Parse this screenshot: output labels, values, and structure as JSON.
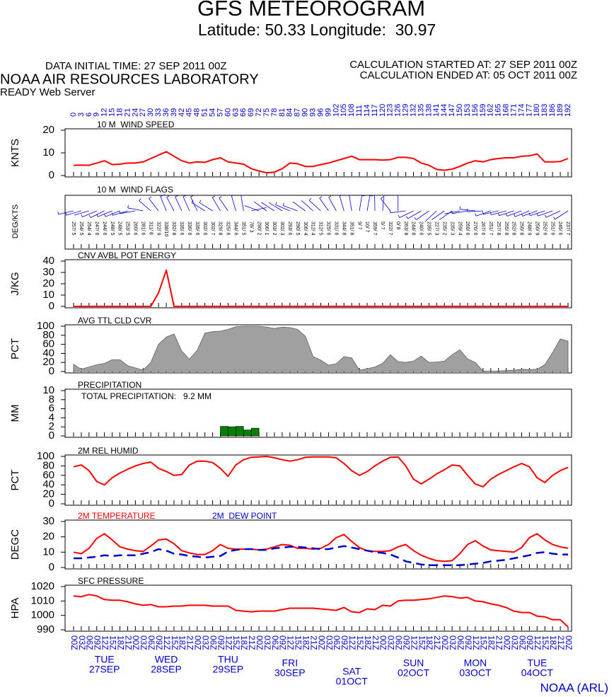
{
  "header": {
    "title": "GFS METEOROGRAM",
    "subtitle": "Latitude: 50.33 Longitude:  30.97",
    "initial_time": "DATA INITIAL TIME: 27 SEP 2011 00Z",
    "lab": "NOAA AIR RESOURCES LABORATORY",
    "server": "READY Web Server",
    "calc_started": "CALCULATION STARTED AT: 27 SEP 2011 00Z",
    "calc_ended": "CALCULATION ENDED AT: 05 OCT 2011 00Z",
    "footer": "NOAA (ARL)"
  },
  "time_axis": {
    "hours": [
      0,
      3,
      6,
      9,
      12,
      15,
      18,
      21,
      24,
      27,
      30,
      33,
      36,
      39,
      42,
      45,
      48,
      51,
      54,
      57,
      60,
      63,
      66,
      69,
      72,
      75,
      78,
      81,
      84,
      87,
      90,
      93,
      96,
      99,
      102,
      105,
      108,
      111,
      114,
      117,
      120,
      123,
      126,
      129,
      132,
      135,
      138,
      141,
      144,
      147,
      150,
      153,
      156,
      159,
      162,
      165,
      168,
      171,
      174,
      177,
      180,
      183,
      186,
      189,
      192
    ],
    "labels": [
      "00Z",
      "03Z",
      "06Z",
      "09Z",
      "12Z",
      "15Z",
      "18Z",
      "21Z",
      "00Z",
      "03Z",
      "06Z",
      "09Z",
      "12Z",
      "15Z",
      "18Z",
      "21Z",
      "00Z",
      "03Z",
      "06Z",
      "09Z",
      "12Z",
      "15Z",
      "18Z",
      "21Z",
      "00Z",
      "03Z",
      "06Z",
      "09Z",
      "12Z",
      "15Z",
      "18Z",
      "21Z",
      "00Z",
      "03Z",
      "06Z",
      "09Z",
      "12Z",
      "15Z",
      "18Z",
      "21Z",
      "00Z",
      "03Z",
      "06Z",
      "09Z",
      "12Z",
      "15Z",
      "18Z",
      "21Z",
      "00Z",
      "03Z",
      "06Z",
      "09Z",
      "12Z",
      "15Z",
      "18Z",
      "21Z",
      "00Z",
      "03Z",
      "06Z",
      "09Z",
      "12Z",
      "15Z",
      "18Z",
      "21Z",
      "00Z"
    ],
    "days": [
      {
        "weekday": "TUE",
        "date": "27SEP"
      },
      {
        "weekday": "WED",
        "date": "28SEP"
      },
      {
        "weekday": "THU",
        "date": "29SEP"
      },
      {
        "weekday": "FRI",
        "date": "30SEP"
      },
      {
        "weekday": "SAT",
        "date": "01OCT"
      },
      {
        "weekday": "SUN",
        "date": "02OCT"
      },
      {
        "weekday": "MON",
        "date": "03OCT"
      },
      {
        "weekday": "TUE",
        "date": "04OCT"
      }
    ]
  },
  "chart_data": [
    {
      "type": "line",
      "title": "10 M  WIND SPEED",
      "ylabel": "KNTS",
      "ylim": [
        0,
        20
      ],
      "yticks": [
        0,
        10,
        20
      ],
      "series": [
        {
          "color": "#ff0000",
          "values": [
            4.5,
            4.6,
            4.5,
            5.5,
            6.5,
            4.8,
            5,
            5.5,
            5.5,
            6,
            7.5,
            9,
            10.5,
            8.5,
            6.5,
            5.5,
            6,
            5.8,
            7,
            7.8,
            6,
            5.5,
            5,
            3,
            2,
            1.2,
            1.5,
            3,
            5.5,
            5.2,
            4,
            4,
            4.8,
            5.5,
            6.5,
            7.5,
            8.5,
            7,
            7,
            7,
            6.8,
            7,
            8,
            8,
            7.5,
            5.5,
            4.5,
            2.7,
            2.3,
            2.8,
            4,
            5.5,
            6.5,
            6,
            7,
            7.5,
            7.8,
            7.8,
            8.5,
            8.7,
            9.5,
            6,
            6,
            6.2,
            7.5
          ]
        }
      ]
    },
    {
      "type": "barbs",
      "title": "10 M  WIND FLAGS",
      "ylabel": "DEG/KTS",
      "color": "#0000cc",
      "direction": [
        257,
        254,
        254,
        247,
        244,
        248,
        248,
        253,
        260,
        281,
        311,
        322,
        338,
        332,
        335,
        336,
        335,
        302,
        302,
        329,
        325,
        344,
        351,
        78,
        290,
        306,
        303,
        302,
        293,
        290,
        306,
        312,
        312,
        325,
        331,
        344,
        351,
        9,
        10,
        359,
        5,
        322,
        0,
        263,
        244,
        240,
        235,
        227,
        235,
        235,
        259,
        260,
        276,
        267,
        251,
        257,
        255,
        252,
        250,
        248,
        250,
        252,
        251,
        245,
        237
      ],
      "speed": [
        5,
        5,
        4,
        6,
        6,
        5,
        5,
        5,
        6,
        6,
        8,
        9,
        10,
        8,
        6,
        6,
        6,
        6,
        7,
        8,
        6,
        6,
        5,
        3,
        2,
        1,
        2,
        3,
        6,
        5,
        4,
        4,
        5,
        6,
        6,
        8,
        8,
        7,
        7,
        7,
        7,
        7,
        8,
        8,
        8,
        6,
        5,
        3,
        2,
        3,
        4,
        6,
        6,
        6,
        7,
        8,
        8,
        8,
        8,
        9,
        9,
        6,
        6,
        6,
        7
      ],
      "value_labels": [
        "257/ 5",
        "254/ 5",
        "254/ 4",
        "247/ 6",
        "244/ 6",
        "248/ 5",
        "248/ 5",
        "253/ 5",
        "260/ 6",
        "281/ 6",
        "311/ 8",
        "322/ 9",
        "338/10",
        "332/ 8",
        "335/ 6",
        "336/ 6",
        "335/ 6",
        "302/ 6",
        "302/ 7",
        "329/ 8",
        "325/ 6",
        "344/ 6",
        "351/ 5",
        "78/ 3",
        "290/ 2",
        "306/ 1",
        "303/ 2",
        "302/ 3",
        "293/ 6",
        "290/ 5",
        "306/ 4",
        "312/ 4",
        "312/ 5",
        "325/ 6",
        "331/ 6",
        "344/ 8",
        "351/ 8",
        "9/ 7",
        "10/ 7",
        "359/ 7",
        "5/ 7",
        "322/ 7",
        "0/ 8",
        "263/ 8",
        "244/ 8",
        "240/ 6",
        "235/ 5",
        "227/ 3",
        "235/ 2",
        "235/ 3",
        "259/ 4",
        "260/ 6",
        "276/ 6",
        "267/ 6",
        "251/ 7",
        "257/ 8",
        "255/ 8",
        "252/ 8",
        "250/ 8",
        "248/ 9",
        "250/ 9",
        "252/ 6",
        "251/ 6",
        "245/ 6",
        "237/ 7"
      ]
    },
    {
      "type": "line",
      "title": "CNV AVBL POT ENERGY",
      "ylabel": "J/KG",
      "ylim": [
        0,
        40
      ],
      "yticks": [
        0,
        10,
        20,
        30,
        40
      ],
      "series": [
        {
          "color": "#ff0000",
          "values": [
            0,
            0,
            0,
            0,
            0,
            0,
            0,
            0,
            0,
            0,
            0,
            12,
            32,
            0,
            0,
            0,
            0,
            0,
            0,
            0,
            0,
            0,
            0,
            0,
            0,
            0,
            0,
            0,
            0,
            0,
            0,
            0,
            0,
            0,
            0,
            0,
            0,
            0,
            0,
            0,
            0,
            0,
            0,
            0,
            0,
            0,
            0,
            0,
            0,
            0,
            0,
            0,
            0,
            0,
            0,
            0,
            0,
            0,
            0,
            0,
            0,
            0,
            0,
            0,
            0
          ]
        }
      ]
    },
    {
      "type": "area",
      "title": "AVG TTL CLD CVR",
      "ylabel": "PCT",
      "ylim": [
        0,
        100
      ],
      "yticks": [
        0,
        20,
        40,
        60,
        80,
        100
      ],
      "series": [
        {
          "color": "#a0a0a0",
          "values": [
            16,
            5,
            10,
            15,
            18,
            26,
            26,
            13,
            8,
            3,
            20,
            60,
            76,
            83,
            45,
            27,
            47,
            85,
            88,
            89,
            93,
            99,
            100,
            100,
            100,
            98,
            95,
            98,
            97,
            93,
            78,
            33,
            25,
            14,
            17,
            33,
            30,
            3,
            6,
            10,
            18,
            37,
            22,
            20,
            23,
            34,
            20,
            21,
            23,
            37,
            48,
            28,
            20,
            1,
            1,
            1,
            2,
            3,
            5,
            4,
            5,
            15,
            42,
            72,
            67
          ]
        }
      ]
    },
    {
      "type": "bar",
      "title": "PRECIPITATION",
      "annotation": "TOTAL PRECIPITATION:   9.2 MM",
      "ylabel": "MM",
      "ylim": [
        0,
        10
      ],
      "yticks": [
        0,
        2,
        4,
        6,
        8,
        10
      ],
      "series": [
        {
          "color": "#008000",
          "values": [
            0,
            0,
            0,
            0,
            0,
            0,
            0,
            0,
            0,
            0,
            0,
            0,
            0,
            0,
            0,
            0,
            0,
            0,
            0,
            2.1,
            2.0,
            2.1,
            1.3,
            1.7,
            0,
            0,
            0,
            0,
            0,
            0,
            0,
            0,
            0,
            0,
            0,
            0,
            0,
            0,
            0,
            0,
            0,
            0,
            0,
            0,
            0,
            0,
            0,
            0,
            0,
            0,
            0,
            0,
            0,
            0,
            0,
            0,
            0,
            0,
            0,
            0,
            0,
            0,
            0,
            0,
            0
          ]
        }
      ]
    },
    {
      "type": "line",
      "title": "2M REL HUMID",
      "ylabel": "PCT",
      "ylim": [
        0,
        100
      ],
      "yticks": [
        0,
        20,
        40,
        60,
        80,
        100
      ],
      "series": [
        {
          "color": "#ff0000",
          "values": [
            78,
            82,
            70,
            47,
            40,
            55,
            65,
            73,
            80,
            85,
            88,
            75,
            68,
            60,
            62,
            82,
            90,
            90,
            87,
            75,
            58,
            82,
            93,
            98,
            99,
            100,
            97,
            93,
            90,
            93,
            98,
            99,
            99,
            99,
            97,
            85,
            70,
            60,
            68,
            80,
            90,
            98,
            99,
            80,
            52,
            42,
            52,
            63,
            72,
            82,
            80,
            60,
            42,
            36,
            52,
            62,
            70,
            78,
            85,
            78,
            55,
            45,
            60,
            70,
            77
          ]
        }
      ]
    },
    {
      "type": "line",
      "ylabel": "DEGC",
      "ylim": [
        0,
        30
      ],
      "yticks": [
        0,
        10,
        20,
        30
      ],
      "series": [
        {
          "name": "2M TEMPERATURE",
          "color": "#ff0000",
          "values": [
            10,
            9,
            12.5,
            19,
            22,
            18,
            13.5,
            12,
            11,
            10.5,
            14,
            18,
            18.5,
            15.5,
            11,
            9.5,
            8.5,
            8.5,
            11,
            15,
            12.5,
            12,
            12,
            12,
            11.5,
            12,
            13.5,
            15,
            14.5,
            12.5,
            12.5,
            12,
            12.5,
            15,
            19.5,
            21.5,
            17,
            13,
            11,
            10.5,
            10.5,
            11,
            13.5,
            15,
            11,
            8,
            6,
            4.5,
            4,
            4.5,
            9,
            15,
            17.5,
            14,
            11.5,
            11,
            10.5,
            10,
            13,
            19.5,
            22,
            18,
            15,
            13.5,
            12.5
          ]
        },
        {
          "name": "2M  DEW POINT",
          "color": "#0000cc",
          "dash": true,
          "values": [
            6,
            6,
            6.5,
            7,
            8,
            7.5,
            8,
            8,
            8,
            9,
            10,
            12,
            11,
            9,
            8.5,
            7.5,
            7,
            6.5,
            7,
            7.5,
            10.5,
            11.5,
            12,
            12,
            11.5,
            11.5,
            12.5,
            13,
            13.5,
            13.5,
            13,
            12.5,
            12,
            12,
            13,
            14,
            13,
            12,
            11,
            10,
            9.5,
            8.5,
            6.5,
            4,
            3,
            2,
            1.5,
            1.5,
            1.5,
            1.5,
            1.5,
            2,
            2.5,
            3,
            4,
            4.5,
            5,
            6,
            7,
            8,
            9.5,
            10,
            9,
            8.5,
            8.5
          ]
        }
      ]
    },
    {
      "type": "line",
      "title": "SFC PRESSURE",
      "ylabel": "HPA",
      "ylim": [
        990,
        1020
      ],
      "yticks": [
        990,
        1000,
        1010,
        1020
      ],
      "series": [
        {
          "color": "#ff0000",
          "values": [
            1013.5,
            1013,
            1014.5,
            1013.5,
            1011,
            1010.5,
            1010.5,
            1009.5,
            1008,
            1007,
            1007.5,
            1006,
            1006,
            1006.5,
            1006.5,
            1007,
            1007,
            1007,
            1006.5,
            1006.5,
            1006.5,
            1003.5,
            1003,
            1002.5,
            1003,
            1003,
            1003,
            1004,
            1005,
            1005,
            1005,
            1005,
            1004.5,
            1004,
            1003.5,
            1005.5,
            1002.5,
            1002,
            1004.5,
            1004,
            1007,
            1006.5,
            1010,
            1010.5,
            1010.5,
            1011,
            1011.5,
            1012.5,
            1013.5,
            1013,
            1012,
            1012.5,
            1010,
            1009.5,
            1008,
            1007,
            1005.5,
            1003,
            1002,
            1002,
            999.5,
            999,
            997,
            997,
            992
          ]
        }
      ]
    }
  ]
}
